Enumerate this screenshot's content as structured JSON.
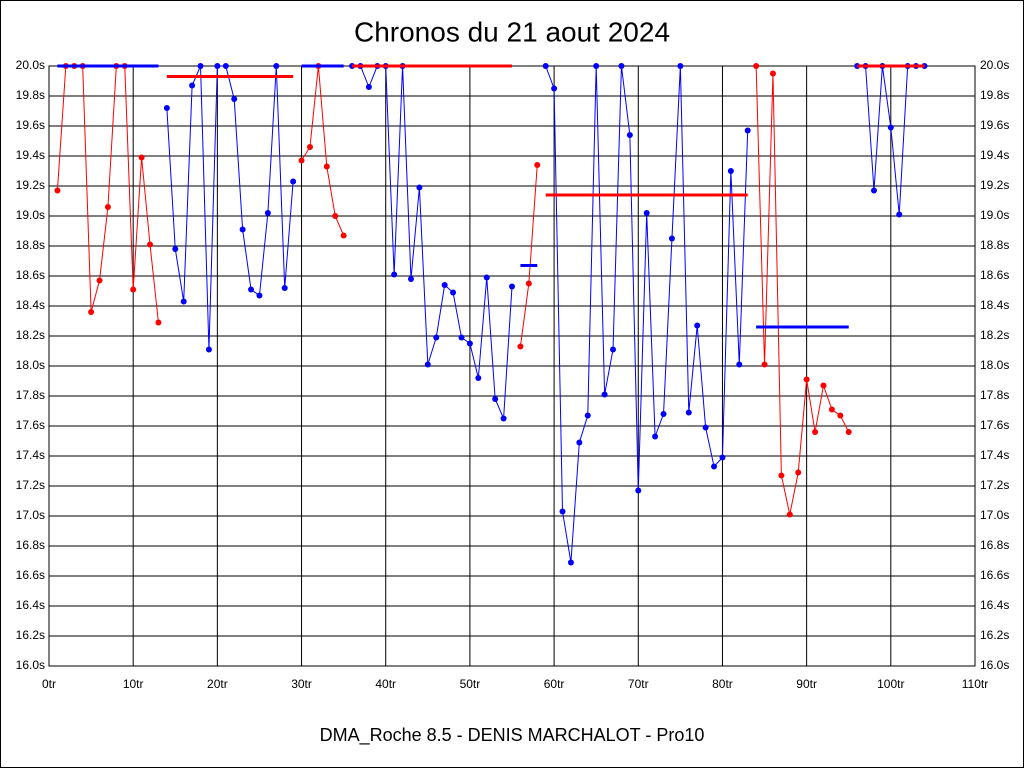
{
  "chart_data": {
    "type": "line",
    "title": "Chronos du 21 aout 2024",
    "subtitle": "DMA_Roche 8.5 - DENIS MARCHALOT - Pro10",
    "xlim": [
      0,
      110
    ],
    "xticks": [
      {
        "value": 0,
        "label": "0tr"
      },
      {
        "value": 10,
        "label": "10tr"
      },
      {
        "value": 20,
        "label": "20tr"
      },
      {
        "value": 30,
        "label": "30tr"
      },
      {
        "value": 40,
        "label": "40tr"
      },
      {
        "value": 50,
        "label": "50tr"
      },
      {
        "value": 60,
        "label": "60tr"
      },
      {
        "value": 70,
        "label": "70tr"
      },
      {
        "value": 80,
        "label": "80tr"
      },
      {
        "value": 90,
        "label": "90tr"
      },
      {
        "value": 100,
        "label": "100tr"
      },
      {
        "value": 110,
        "label": "110tr"
      }
    ],
    "ylim": [
      16.0,
      20.0
    ],
    "yticks": [
      {
        "value": 16.0,
        "label": "16.0s"
      },
      {
        "value": 16.2,
        "label": "16.2s"
      },
      {
        "value": 16.4,
        "label": "16.4s"
      },
      {
        "value": 16.6,
        "label": "16.6s"
      },
      {
        "value": 16.8,
        "label": "16.8s"
      },
      {
        "value": 17.0,
        "label": "17.0s"
      },
      {
        "value": 17.2,
        "label": "17.2s"
      },
      {
        "value": 17.4,
        "label": "17.4s"
      },
      {
        "value": 17.6,
        "label": "17.6s"
      },
      {
        "value": 17.8,
        "label": "17.8s"
      },
      {
        "value": 18.0,
        "label": "18.0s"
      },
      {
        "value": 18.2,
        "label": "18.2s"
      },
      {
        "value": 18.4,
        "label": "18.4s"
      },
      {
        "value": 18.6,
        "label": "18.6s"
      },
      {
        "value": 18.8,
        "label": "18.8s"
      },
      {
        "value": 19.0,
        "label": "19.0s"
      },
      {
        "value": 19.2,
        "label": "19.2s"
      },
      {
        "value": 19.4,
        "label": "19.4s"
      },
      {
        "value": 19.6,
        "label": "19.6s"
      },
      {
        "value": 19.8,
        "label": "19.8s"
      },
      {
        "value": 20.0,
        "label": "20.0s"
      }
    ],
    "grid": true,
    "series": [
      {
        "color": "#ff0000",
        "x": [
          1,
          2,
          3,
          4,
          5,
          6,
          7,
          8,
          9,
          10,
          11,
          12,
          13
        ],
        "values": [
          19.17,
          20.0,
          20.0,
          20.0,
          18.36,
          18.57,
          19.06,
          20.0,
          20.0,
          18.51,
          19.39,
          18.81,
          18.29
        ]
      },
      {
        "color": "#0000ff",
        "x": [
          14,
          15,
          16,
          17,
          18,
          19,
          20,
          21,
          22,
          23,
          24,
          25,
          26,
          27,
          28,
          29
        ],
        "values": [
          19.72,
          18.78,
          18.43,
          19.87,
          20.0,
          18.11,
          20.0,
          20.0,
          19.78,
          18.91,
          18.51,
          18.47,
          19.02,
          20.0,
          18.52,
          19.23
        ]
      },
      {
        "color": "#ff0000",
        "x": [
          30,
          31,
          32,
          33,
          34,
          35
        ],
        "values": [
          19.37,
          19.46,
          20.0,
          19.33,
          19.0,
          18.87
        ]
      },
      {
        "color": "#0000ff",
        "x": [
          36,
          37,
          38,
          39,
          40,
          41,
          42,
          43,
          44,
          45,
          46,
          47,
          48,
          49,
          50,
          51,
          52,
          53,
          54,
          55
        ],
        "values": [
          20.0,
          20.0,
          19.86,
          20.0,
          20.0,
          18.61,
          20.0,
          18.58,
          19.19,
          18.01,
          18.19,
          18.54,
          18.49,
          18.19,
          18.15,
          17.92,
          18.59,
          17.78,
          17.65,
          18.53
        ]
      },
      {
        "color": "#ff0000",
        "x": [
          56,
          57,
          58
        ],
        "values": [
          18.13,
          18.55,
          19.34
        ]
      },
      {
        "color": "#0000ff",
        "x": [
          59,
          60,
          61,
          62,
          63,
          64,
          65,
          66,
          67,
          68,
          69,
          70,
          71,
          72,
          73,
          74,
          75,
          76,
          77,
          78,
          79,
          80,
          81,
          82,
          83
        ],
        "values": [
          20.0,
          19.85,
          17.03,
          16.69,
          17.49,
          17.67,
          20.0,
          17.81,
          18.11,
          20.0,
          19.54,
          17.17,
          19.02,
          17.53,
          17.68,
          18.85,
          20.0,
          17.69,
          18.27,
          17.59,
          17.33,
          17.39,
          19.3,
          18.01,
          19.57
        ]
      },
      {
        "color": "#ff0000",
        "x": [
          84,
          85,
          86,
          87,
          88,
          89,
          90,
          91,
          92,
          93,
          94,
          95
        ],
        "values": [
          20.0,
          18.01,
          19.95,
          17.27,
          17.01,
          17.29,
          17.91,
          17.56,
          17.87,
          17.71,
          17.67,
          17.56
        ]
      },
      {
        "color": "#0000ff",
        "x": [
          96,
          97,
          98,
          99,
          100,
          101,
          102,
          103,
          104
        ],
        "values": [
          20.0,
          20.0,
          19.17,
          20.0,
          19.59,
          19.01,
          20.0,
          20.0,
          20.0
        ]
      }
    ],
    "averages": [
      {
        "color": "#0000ff",
        "x": [
          1,
          13
        ],
        "value": 20.0
      },
      {
        "color": "#ff0000",
        "x": [
          14,
          29
        ],
        "value": 19.93
      },
      {
        "color": "#0000ff",
        "x": [
          30,
          35
        ],
        "value": 20.0
      },
      {
        "color": "#ff0000",
        "x": [
          36,
          55
        ],
        "value": 20.0
      },
      {
        "color": "#0000ff",
        "x": [
          56,
          58
        ],
        "value": 18.67
      },
      {
        "color": "#ff0000",
        "x": [
          59,
          83
        ],
        "value": 19.14
      },
      {
        "color": "#0000ff",
        "x": [
          84,
          95
        ],
        "value": 18.26
      },
      {
        "color": "#ff0000",
        "x": [
          96,
          104
        ],
        "value": 20.0
      }
    ]
  }
}
